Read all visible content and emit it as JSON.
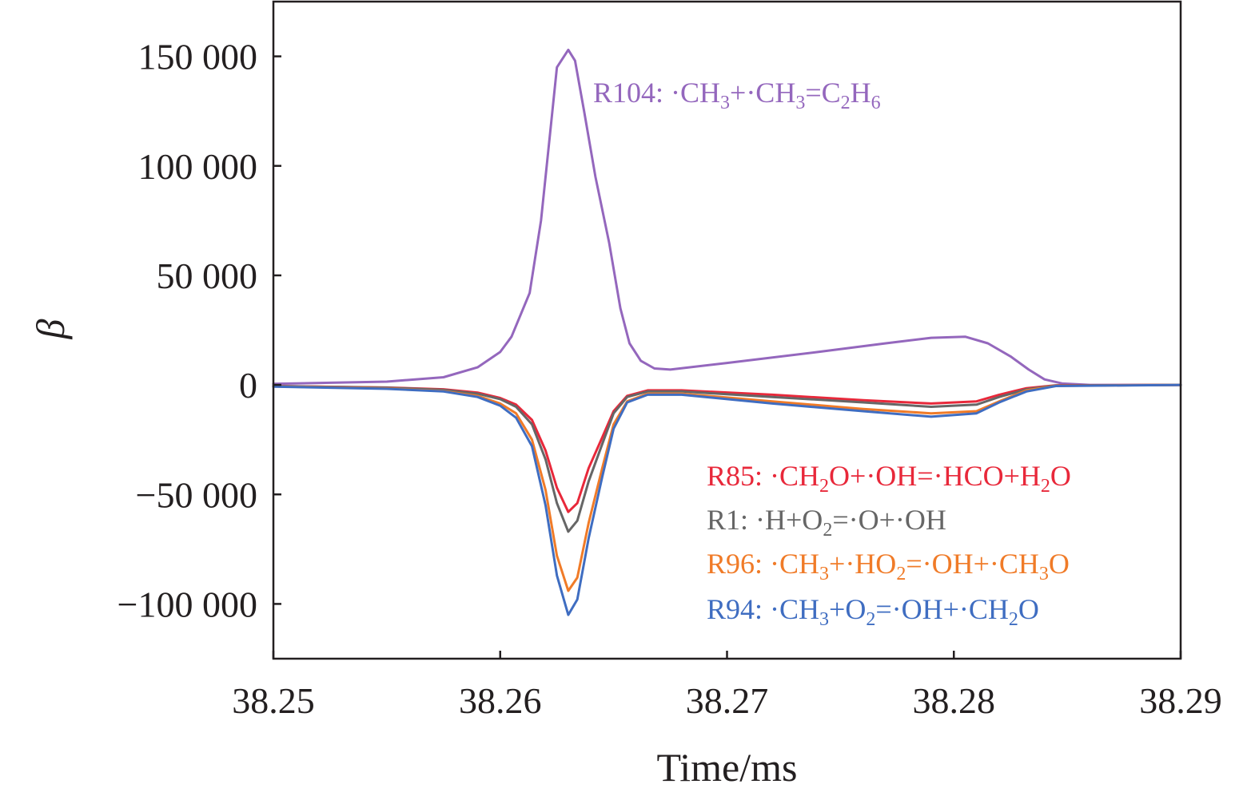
{
  "chart_data": {
    "type": "line",
    "title": "",
    "xlabel": "Time/ms",
    "ylabel": "β",
    "xlim": [
      38.25,
      38.29
    ],
    "ylim": [
      -125000,
      175000
    ],
    "x_ticks": [
      38.25,
      38.26,
      38.27,
      38.28,
      38.29
    ],
    "x_tick_labels": [
      "38.25",
      "38.26",
      "38.27",
      "38.28",
      "38.29"
    ],
    "y_ticks": [
      150000,
      100000,
      50000,
      0,
      -50000,
      -100000
    ],
    "y_tick_labels": [
      "150 000",
      "100 000",
      "50 000",
      "0",
      "−50 000",
      "−100 000"
    ],
    "grid": false,
    "series": [
      {
        "name": "R104: ·CH3+·CH3=C2H6",
        "color": "#9467bd",
        "points": [
          [
            38.25,
            500
          ],
          [
            38.255,
            1500
          ],
          [
            38.2575,
            3500
          ],
          [
            38.259,
            8000
          ],
          [
            38.26,
            15000
          ],
          [
            38.2605,
            22000
          ],
          [
            38.2613,
            42000
          ],
          [
            38.2618,
            75000
          ],
          [
            38.2622,
            115000
          ],
          [
            38.2625,
            145000
          ],
          [
            38.263,
            153000
          ],
          [
            38.2633,
            148000
          ],
          [
            38.2637,
            125000
          ],
          [
            38.2642,
            95000
          ],
          [
            38.2648,
            65000
          ],
          [
            38.2653,
            35000
          ],
          [
            38.2657,
            19000
          ],
          [
            38.2662,
            11000
          ],
          [
            38.2668,
            7500
          ],
          [
            38.2675,
            7000
          ],
          [
            38.27,
            10000
          ],
          [
            38.274,
            15000
          ],
          [
            38.277,
            19000
          ],
          [
            38.279,
            21500
          ],
          [
            38.2805,
            22000
          ],
          [
            38.2815,
            19000
          ],
          [
            38.2825,
            13000
          ],
          [
            38.2833,
            7000
          ],
          [
            38.284,
            2500
          ],
          [
            38.2848,
            600
          ],
          [
            38.286,
            0
          ],
          [
            38.29,
            0
          ]
        ]
      },
      {
        "name": "R85: ·CH2O+·OH=·HCO+H2O",
        "color": "#e8283a",
        "points": [
          [
            38.25,
            -500
          ],
          [
            38.255,
            -1200
          ],
          [
            38.2575,
            -2000
          ],
          [
            38.259,
            -3500
          ],
          [
            38.26,
            -6000
          ],
          [
            38.2607,
            -9000
          ],
          [
            38.2614,
            -16000
          ],
          [
            38.262,
            -30000
          ],
          [
            38.2625,
            -47000
          ],
          [
            38.263,
            -58000
          ],
          [
            38.2634,
            -54000
          ],
          [
            38.2639,
            -38000
          ],
          [
            38.2645,
            -24000
          ],
          [
            38.265,
            -12000
          ],
          [
            38.2656,
            -5000
          ],
          [
            38.2665,
            -2500
          ],
          [
            38.268,
            -2500
          ],
          [
            38.272,
            -4500
          ],
          [
            38.276,
            -7000
          ],
          [
            38.279,
            -8500
          ],
          [
            38.281,
            -7500
          ],
          [
            38.282,
            -4500
          ],
          [
            38.2832,
            -1500
          ],
          [
            38.2845,
            -200
          ],
          [
            38.29,
            0
          ]
        ]
      },
      {
        "name": "R1: ·H+O2=·O+·OH",
        "color": "#666666",
        "points": [
          [
            38.25,
            -500
          ],
          [
            38.255,
            -1300
          ],
          [
            38.2575,
            -2300
          ],
          [
            38.259,
            -4000
          ],
          [
            38.26,
            -6500
          ],
          [
            38.2607,
            -10000
          ],
          [
            38.2614,
            -18000
          ],
          [
            38.262,
            -34000
          ],
          [
            38.2625,
            -54000
          ],
          [
            38.263,
            -67000
          ],
          [
            38.2634,
            -62000
          ],
          [
            38.2639,
            -44000
          ],
          [
            38.2645,
            -27000
          ],
          [
            38.265,
            -13000
          ],
          [
            38.2656,
            -5500
          ],
          [
            38.2665,
            -3000
          ],
          [
            38.268,
            -3000
          ],
          [
            38.272,
            -5500
          ],
          [
            38.276,
            -8000
          ],
          [
            38.279,
            -10000
          ],
          [
            38.281,
            -9000
          ],
          [
            38.282,
            -5500
          ],
          [
            38.2832,
            -2000
          ],
          [
            38.2845,
            -300
          ],
          [
            38.29,
            0
          ]
        ]
      },
      {
        "name": "R96: ·CH3+·HO2=·OH+·CH3O",
        "color": "#f07b28",
        "points": [
          [
            38.25,
            -700
          ],
          [
            38.255,
            -1600
          ],
          [
            38.2575,
            -2800
          ],
          [
            38.259,
            -5000
          ],
          [
            38.26,
            -8500
          ],
          [
            38.2607,
            -13000
          ],
          [
            38.2614,
            -25000
          ],
          [
            38.262,
            -48000
          ],
          [
            38.2625,
            -78000
          ],
          [
            38.263,
            -94000
          ],
          [
            38.2634,
            -88000
          ],
          [
            38.2639,
            -63000
          ],
          [
            38.2645,
            -38000
          ],
          [
            38.265,
            -18000
          ],
          [
            38.2656,
            -7500
          ],
          [
            38.2665,
            -4000
          ],
          [
            38.268,
            -4000
          ],
          [
            38.272,
            -7500
          ],
          [
            38.276,
            -11000
          ],
          [
            38.279,
            -13000
          ],
          [
            38.281,
            -12000
          ],
          [
            38.282,
            -7500
          ],
          [
            38.2832,
            -2500
          ],
          [
            38.2845,
            -400
          ],
          [
            38.29,
            0
          ]
        ]
      },
      {
        "name": "R94: ·CH3+O2=·OH+·CH2O",
        "color": "#3f6dc1",
        "points": [
          [
            38.25,
            -800
          ],
          [
            38.255,
            -1800
          ],
          [
            38.2575,
            -3000
          ],
          [
            38.259,
            -5500
          ],
          [
            38.26,
            -9500
          ],
          [
            38.2607,
            -15000
          ],
          [
            38.2614,
            -28000
          ],
          [
            38.262,
            -55000
          ],
          [
            38.2625,
            -87000
          ],
          [
            38.263,
            -105000
          ],
          [
            38.2634,
            -98000
          ],
          [
            38.2639,
            -70000
          ],
          [
            38.2645,
            -42000
          ],
          [
            38.265,
            -20000
          ],
          [
            38.2656,
            -8000
          ],
          [
            38.2665,
            -4500
          ],
          [
            38.268,
            -4500
          ],
          [
            38.272,
            -8500
          ],
          [
            38.276,
            -12000
          ],
          [
            38.279,
            -14500
          ],
          [
            38.281,
            -13000
          ],
          [
            38.282,
            -8000
          ],
          [
            38.2832,
            -3000
          ],
          [
            38.2845,
            -500
          ],
          [
            38.29,
            0
          ]
        ]
      }
    ],
    "annotations": [
      {
        "id": "r104",
        "series": 0,
        "parts": [
          [
            "R104: ·CH",
            "n"
          ],
          [
            "3",
            "s"
          ],
          [
            "+·CH",
            "n"
          ],
          [
            "3",
            "s"
          ],
          [
            "=C",
            "n"
          ],
          [
            "2",
            "s"
          ],
          [
            "H",
            "n"
          ],
          [
            "6",
            "s"
          ]
        ]
      },
      {
        "id": "r85",
        "series": 1,
        "parts": [
          [
            "R85: ·CH",
            "n"
          ],
          [
            "2",
            "s"
          ],
          [
            "O+·OH=·HCO+H",
            "n"
          ],
          [
            "2",
            "s"
          ],
          [
            "O",
            "n"
          ]
        ]
      },
      {
        "id": "r1",
        "series": 2,
        "parts": [
          [
            "R1: ·H+O",
            "n"
          ],
          [
            "2",
            "s"
          ],
          [
            "=·O+·OH",
            "n"
          ]
        ]
      },
      {
        "id": "r96",
        "series": 3,
        "parts": [
          [
            "R96: ·CH",
            "n"
          ],
          [
            "3",
            "s"
          ],
          [
            "+·HO",
            "n"
          ],
          [
            "2",
            "s"
          ],
          [
            "=·OH+·CH",
            "n"
          ],
          [
            "3",
            "s"
          ],
          [
            "O",
            "n"
          ]
        ]
      },
      {
        "id": "r94",
        "series": 4,
        "parts": [
          [
            "R94: ·CH",
            "n"
          ],
          [
            "3",
            "s"
          ],
          [
            "+O",
            "n"
          ],
          [
            "2",
            "s"
          ],
          [
            "=·OH+·CH",
            "n"
          ],
          [
            "2",
            "s"
          ],
          [
            "O",
            "n"
          ]
        ]
      }
    ]
  }
}
